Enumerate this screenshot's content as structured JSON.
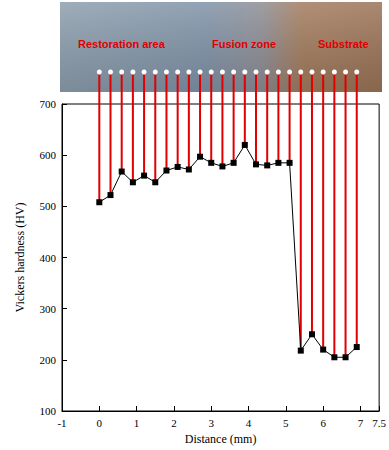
{
  "chart_data": {
    "type": "line",
    "x": [
      0,
      0.3,
      0.6,
      0.9,
      1.2,
      1.5,
      1.8,
      2.1,
      2.4,
      2.7,
      3.0,
      3.3,
      3.6,
      3.9,
      4.2,
      4.5,
      4.8,
      5.1,
      5.4,
      5.7,
      6.0,
      6.3,
      6.6,
      6.9
    ],
    "values": [
      508,
      522,
      568,
      547,
      560,
      547,
      570,
      577,
      572,
      597,
      585,
      578,
      585,
      620,
      582,
      580,
      585,
      585,
      218,
      250,
      220,
      205,
      205,
      225
    ],
    "xlim": [
      -1,
      7.5
    ],
    "xticks": [
      -1,
      0,
      1,
      2,
      3,
      4,
      5,
      6,
      7
    ],
    "ylim": [
      100,
      700
    ],
    "yticks": [
      100,
      200,
      300,
      400,
      500,
      600,
      700
    ],
    "x_label": "Distance (mm)",
    "y_label": "Vickers hardness (HV)",
    "annotations": [
      "Restoration area",
      "Fusion zone",
      "Substrate"
    ],
    "color": "#000000",
    "marker": "square",
    "line_style": "solid",
    "grid": false
  }
}
